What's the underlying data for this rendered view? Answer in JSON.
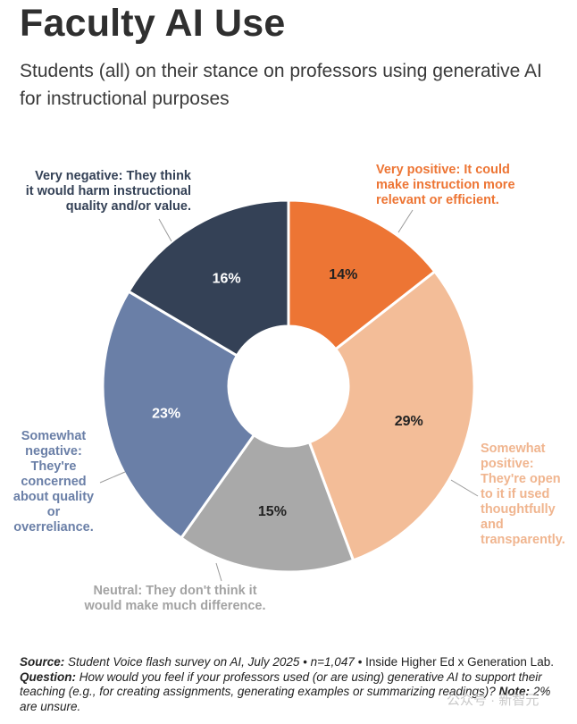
{
  "title": "Faculty AI Use",
  "subtitle": "Students (all) on their stance on professors using generative AI for instructional purposes",
  "chart_data": {
    "type": "pie",
    "donut": true,
    "slices": [
      {
        "label": "Very positive: It could make instruction more relevant or efficient.",
        "value": 14,
        "display": "14%",
        "color": "#ED7534",
        "text_color": "#222222"
      },
      {
        "label": "Somewhat positive: They're open to it if used thoughtfully and transparently.",
        "value": 29,
        "display": "29%",
        "color": "#F3BD98",
        "text_color": "#222222"
      },
      {
        "label": "Neutral: They don't think it would make much difference.",
        "value": 15,
        "display": "15%",
        "color": "#A9A9A9",
        "text_color": "#222222"
      },
      {
        "label": "Somewhat negative: They're concerned about quality or overreliance.",
        "value": 23,
        "display": "23%",
        "color": "#6A7FA7",
        "text_color": "#ffffff"
      },
      {
        "label": "Very negative: They think it would harm instructional quality and/or value.",
        "value": 16,
        "display": "16%",
        "color": "#344156",
        "text_color": "#ffffff"
      }
    ]
  },
  "labels": {
    "very_positive": "Very positive: It could\nmake instruction more\nrelevant or efficient.",
    "very_negative": "Very negative: They think\nit would harm instructional\nquality and/or value.",
    "somewhat_positive": "Somewhat\npositive:\nThey're open\nto it if used\nthoughtfully\nand\ntransparently.",
    "somewhat_negative": "Somewhat\nnegative:\nThey're\nconcerned\nabout quality\nor\noverreliance.",
    "neutral": "Neutral: They don't think it\nwould make much difference."
  },
  "footnote": {
    "source_label": "Source:",
    "source_text": "Student Voice flash survey on AI, July 2025 • n=1,047 •",
    "source_org": "Inside Higher Ed x Generation Lab.",
    "question_label": "Question:",
    "question_text": "How would you feel if your professors used (or are using) generative AI to support their teaching (e.g., for creating assignments, generating examples or summarizing readings)?",
    "note_label": "Note:",
    "note_text": "2% are unsure."
  },
  "watermark": "公众号 · 新智元"
}
